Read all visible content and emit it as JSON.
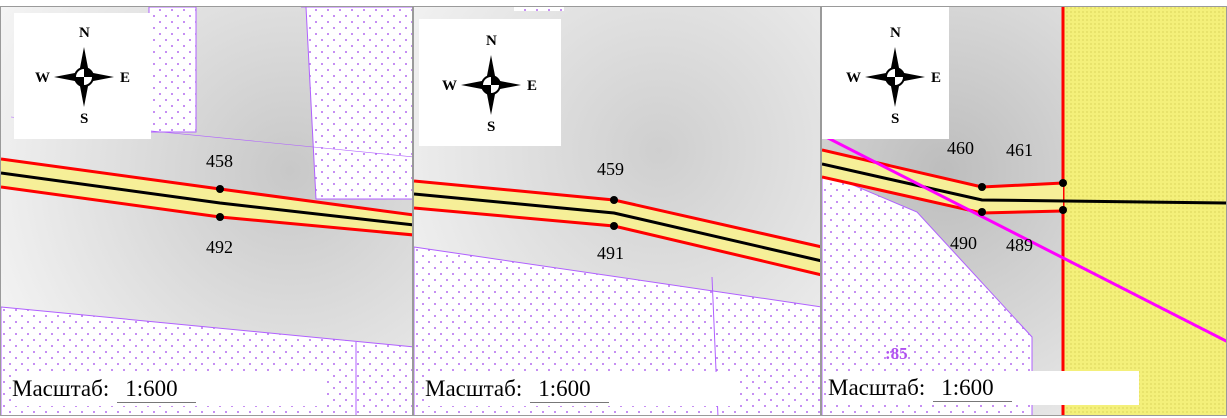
{
  "compass": {
    "north": "N",
    "south": "S",
    "west": "W",
    "east": "E"
  },
  "panels": [
    {
      "scale_label": "Масштаб:",
      "scale_value": "1:600",
      "points": [
        "458",
        "492"
      ]
    },
    {
      "scale_label": "Масштаб:",
      "scale_value": "1:600",
      "points": [
        "459",
        "491"
      ]
    },
    {
      "scale_label": "Масштаб:",
      "scale_value": "1:600",
      "points": [
        "460",
        "461",
        "490",
        "489"
      ],
      "parcel_label": ":85"
    }
  ],
  "colors": {
    "boundary_red": "#ff0000",
    "centerline": "#000000",
    "road_fill": "#f6ef98",
    "parcel_outline": "#b060ff",
    "magenta_line": "#ff00ff",
    "yellow_zone": "#f4f07a"
  }
}
